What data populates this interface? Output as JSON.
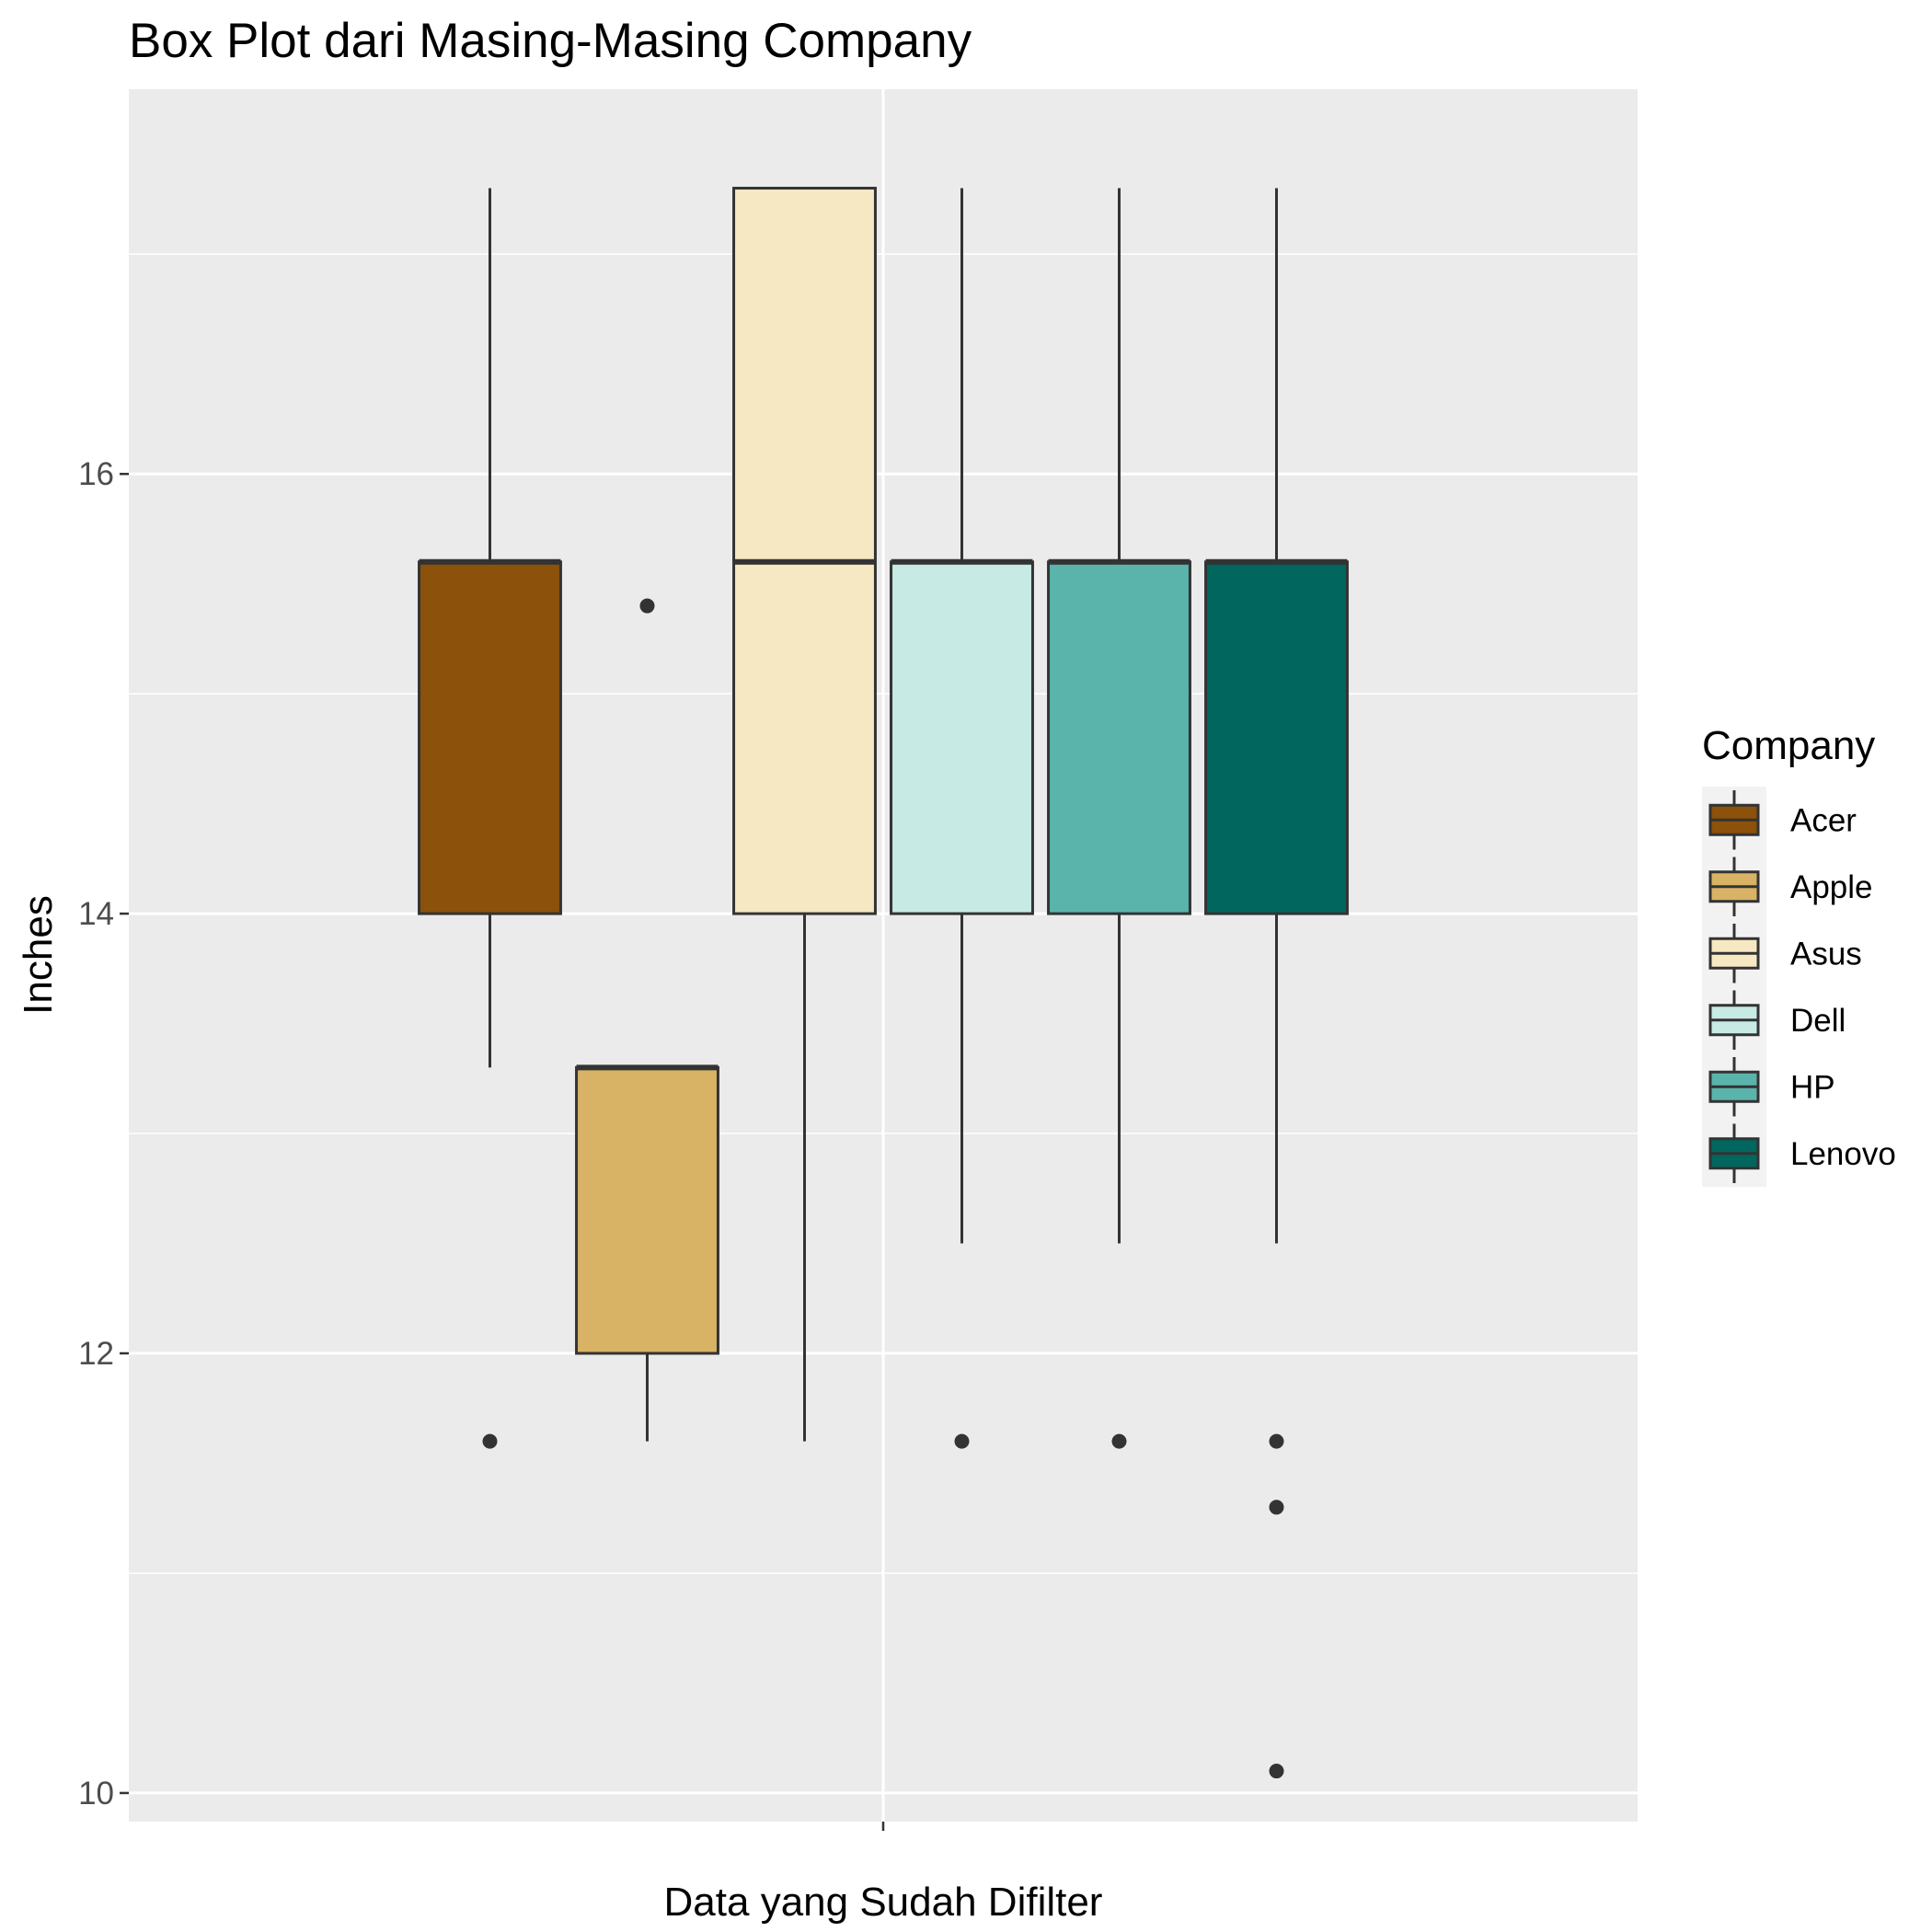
{
  "chart_data": {
    "type": "box",
    "title": "Box Plot dari Masing-Masing Company",
    "xlabel": "Data yang Sudah Difilter",
    "ylabel": "Inches",
    "ylim": [
      9.87,
      17.75
    ],
    "y_major_ticks": [
      10,
      12,
      14,
      16
    ],
    "y_minor_ticks": [
      11,
      13,
      15,
      17
    ],
    "grid": true,
    "legend": {
      "title": "Company",
      "position": "right"
    },
    "series": [
      {
        "name": "Acer",
        "color": "#8c510a",
        "whisker_low": 13.3,
        "q1": 14.0,
        "median": 15.6,
        "q3": 15.6,
        "whisker_high": 17.3,
        "outliers": [
          11.6
        ]
      },
      {
        "name": "Apple",
        "color": "#d8b365",
        "whisker_low": 11.6,
        "q1": 12.0,
        "median": 13.3,
        "q3": 13.3,
        "whisker_high": 13.3,
        "outliers": [
          15.4
        ]
      },
      {
        "name": "Asus",
        "color": "#f6e8c3",
        "whisker_low": 11.6,
        "q1": 14.0,
        "median": 15.6,
        "q3": 17.3,
        "whisker_high": 17.3,
        "outliers": []
      },
      {
        "name": "Dell",
        "color": "#c7eae5",
        "whisker_low": 12.5,
        "q1": 14.0,
        "median": 15.6,
        "q3": 15.6,
        "whisker_high": 17.3,
        "outliers": [
          11.6
        ]
      },
      {
        "name": "HP",
        "color": "#5ab4ac",
        "whisker_low": 12.5,
        "q1": 14.0,
        "median": 15.6,
        "q3": 15.6,
        "whisker_high": 17.3,
        "outliers": [
          11.6
        ]
      },
      {
        "name": "Lenovo",
        "color": "#01665e",
        "whisker_low": 12.5,
        "q1": 14.0,
        "median": 15.6,
        "q3": 15.6,
        "whisker_high": 17.3,
        "outliers": [
          11.6,
          11.3,
          10.1
        ]
      }
    ]
  }
}
